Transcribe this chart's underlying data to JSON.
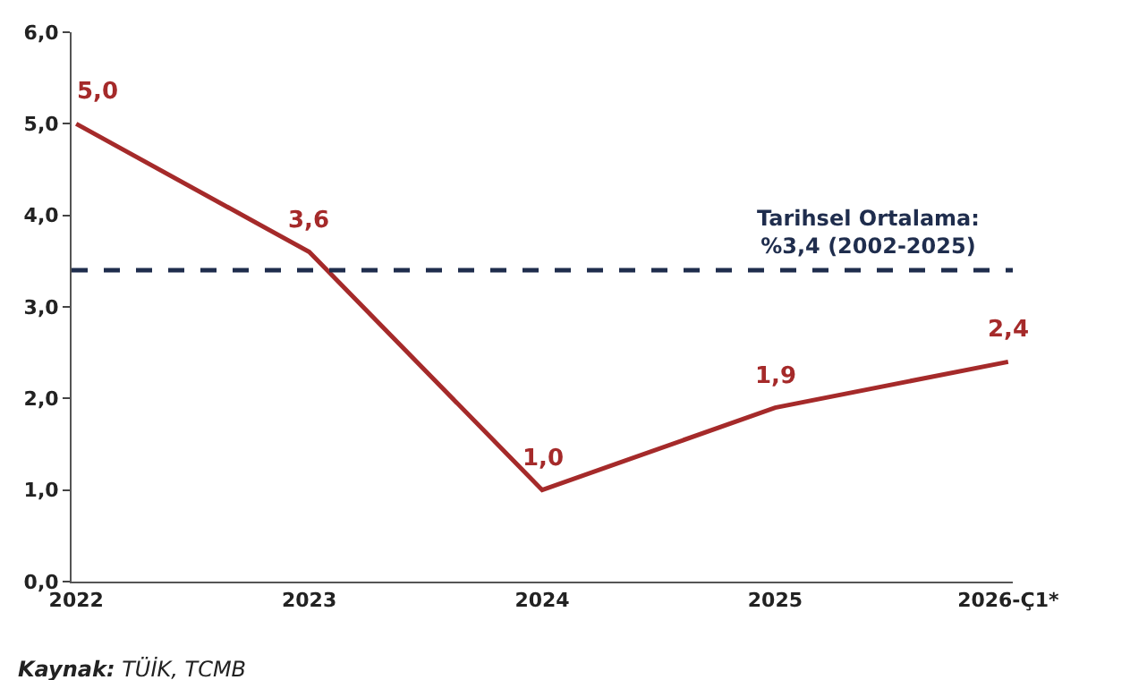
{
  "chart_data": {
    "type": "line",
    "categories": [
      "2022",
      "2023",
      "2024",
      "2025",
      "2026-Ç1*"
    ],
    "series": [
      {
        "color": "#a52a2a",
        "values": [
          5.0,
          3.6,
          1.0,
          1.9,
          2.4
        ],
        "value_labels": [
          "5,0",
          "3,6",
          "1,0",
          "1,9",
          "2,4"
        ]
      }
    ],
    "ylim": [
      0,
      6
    ],
    "yticks": [
      {
        "value": 0,
        "label": "0,0"
      },
      {
        "value": 1,
        "label": "1,0"
      },
      {
        "value": 2,
        "label": "2,0"
      },
      {
        "value": 3,
        "label": "3,0"
      },
      {
        "value": 4,
        "label": "4,0"
      },
      {
        "value": 5,
        "label": "5,0"
      },
      {
        "value": 6,
        "label": "6,0"
      }
    ],
    "ref_lines": [
      {
        "axis": "y",
        "value": 3.4,
        "label": "Tarihsel Ortalama:\n%3,4 (2002-2025)",
        "color": "#1f2d4d",
        "line_style": "dashed"
      }
    ],
    "annotations": [
      "Kaynak: TÜİK, TCMB"
    ],
    "legend": false,
    "marker": "none",
    "line_style": "solid"
  }
}
